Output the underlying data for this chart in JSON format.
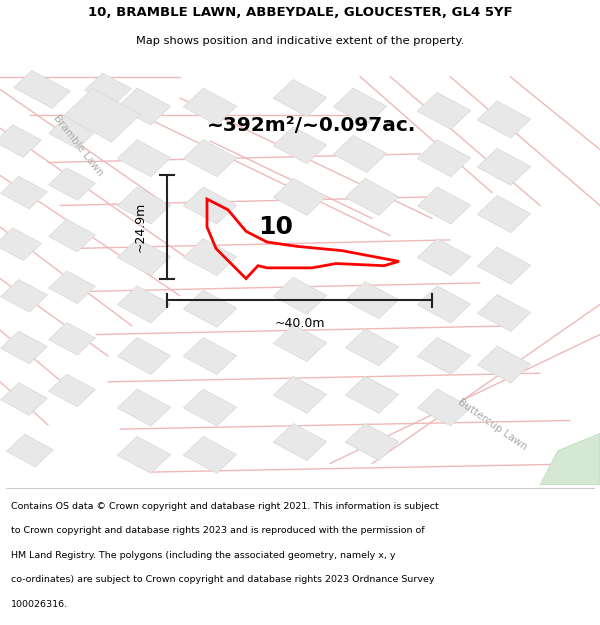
{
  "title_line1": "10, BRAMBLE LAWN, ABBEYDALE, GLOUCESTER, GL4 5YF",
  "title_line2": "Map shows position and indicative extent of the property.",
  "area_text": "~392m²/~0.097ac.",
  "label_number": "10",
  "dim_width": "~40.0m",
  "dim_height": "~24.9m",
  "footer_lines": [
    "Contains OS data © Crown copyright and database right 2021. This information is subject",
    "to Crown copyright and database rights 2023 and is reproduced with the permission of",
    "HM Land Registry. The polygons (including the associated geometry, namely x, y",
    "co-ordinates) are subject to Crown copyright and database rights 2023 Ordnance Survey",
    "100026316."
  ],
  "road_label_bramble": "Bramble Lawn",
  "road_label_buttercup": "Buttercup Lawn",
  "map_bg": "#f7f7f7",
  "road_color": "#f0b8b8",
  "road_lw": 1.0,
  "building_color": "#e8e8e8",
  "building_edge": "#d8d8d8",
  "red_poly_color": "#ff0000",
  "dim_color": "#222222",
  "green_patch": "#d4e8d4"
}
